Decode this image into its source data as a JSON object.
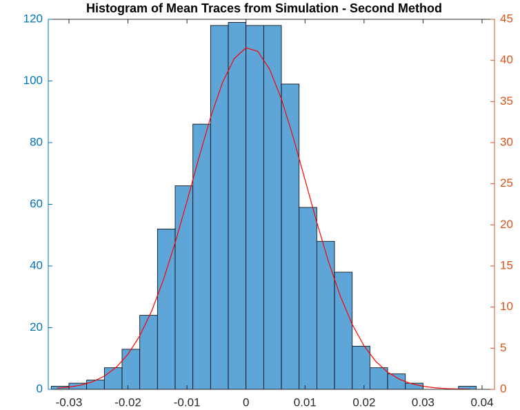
{
  "chart_data": {
    "type": "histogram",
    "title": "Histogram of Mean Traces from Simulation - Second Method",
    "bins": [
      -0.033,
      -0.03,
      -0.027,
      -0.024,
      -0.021,
      -0.018,
      -0.015,
      -0.012,
      -0.009,
      -0.006,
      -0.003,
      0,
      0.003,
      0.006,
      0.009,
      0.012,
      0.015,
      0.018,
      0.021,
      0.024,
      0.027,
      0.03,
      0.033,
      0.036,
      0.039
    ],
    "values": [
      1,
      2,
      3,
      7,
      13,
      24,
      52,
      66,
      86,
      118,
      119,
      118,
      118,
      99,
      59,
      48,
      38,
      14,
      7,
      5,
      2,
      0,
      0,
      1
    ],
    "color": "#5ea5d8",
    "edgecolor": "#000000",
    "xlim": [
      -0.0335,
      0.0421
    ],
    "xticks": [
      -0.03,
      -0.02,
      -0.01,
      0,
      0.01,
      0.02,
      0.03,
      0.04
    ],
    "ylim": [
      0,
      120
    ],
    "yticks": [
      0,
      20,
      40,
      60,
      80,
      100,
      120
    ],
    "ycolor": "#0072bd",
    "y2lim": [
      0,
      45
    ],
    "y2ticks": [
      0,
      5,
      10,
      15,
      20,
      25,
      30,
      35,
      40,
      45
    ],
    "y2color": "#d95319",
    "series": [
      {
        "type": "line",
        "color": "#ff0000",
        "axis": "y2",
        "x": [
          -0.032,
          -0.03,
          -0.028,
          -0.026,
          -0.024,
          -0.022,
          -0.02,
          -0.018,
          -0.016,
          -0.014,
          -0.012,
          -0.01,
          -0.008,
          -0.006,
          -0.004,
          -0.002,
          0,
          0.002,
          0.004,
          0.006,
          0.008,
          0.01,
          0.012,
          0.014,
          0.016,
          0.018,
          0.02,
          0.022,
          0.024,
          0.026,
          0.028,
          0.03,
          0.032,
          0.034,
          0.036,
          0.038
        ],
        "values": [
          0.14,
          0.27,
          0.51,
          0.92,
          1.6,
          2.67,
          4.26,
          6.5,
          9.5,
          13.3,
          17.82,
          22.87,
          28.11,
          33.08,
          37.27,
          40.21,
          41.54,
          41.1,
          38.93,
          35.31,
          30.66,
          25.49,
          20.3,
          15.48,
          11.3,
          7.9,
          5.29,
          3.39,
          2.08,
          1.22,
          0.69,
          0.37,
          0.19,
          0.09,
          0.04,
          0.02
        ]
      }
    ]
  }
}
